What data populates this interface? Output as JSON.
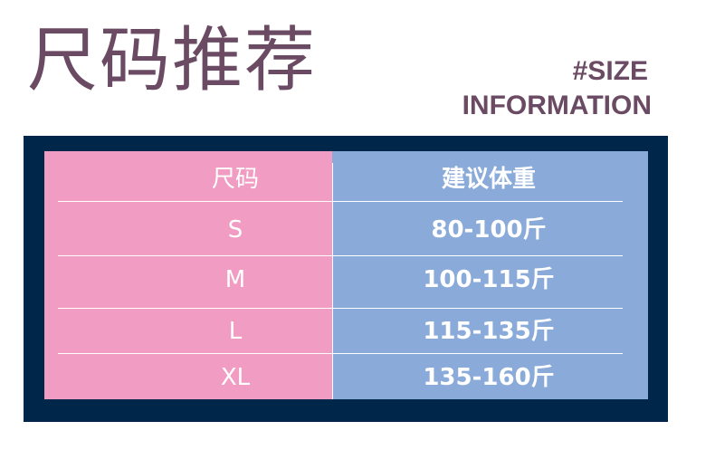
{
  "header": {
    "title": "尺码推荐",
    "subtitle_line1": "#SIZE",
    "subtitle_line2": "INFORMATION"
  },
  "table": {
    "columns": [
      "尺码",
      "建议体重"
    ],
    "rows": [
      {
        "size": "S",
        "weight": "80-100斤"
      },
      {
        "size": "M",
        "weight": "100-115斤"
      },
      {
        "size": "L",
        "weight": "115-135斤"
      },
      {
        "size": "XL",
        "weight": "135-160斤"
      }
    ]
  },
  "colors": {
    "frame": "#00264a",
    "size_column": "#f19dc3",
    "weight_column": "#8aabd9",
    "title": "#6b4a63"
  }
}
